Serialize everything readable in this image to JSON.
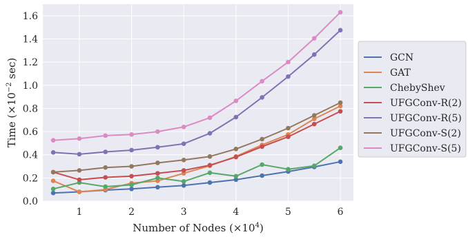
{
  "chart_data": {
    "type": "line",
    "xlabel": "Number of Nodes (×10",
    "xlabel_sup": "4",
    "xlabel_end": ")",
    "ylabel": "Time (×10",
    "ylabel_sup": "−2",
    "ylabel_end": " sec)",
    "x": [
      0.5,
      1,
      1.5,
      2,
      2.5,
      3,
      3.5,
      4,
      4.5,
      5,
      5.5,
      6
    ],
    "xlim": [
      0.3,
      6.25
    ],
    "ylim": [
      0,
      1.7
    ],
    "xticks": [
      1,
      2,
      3,
      4,
      5,
      6
    ],
    "yticks": [
      0.0,
      0.2,
      0.4,
      0.6,
      0.8,
      1.0,
      1.2,
      1.4,
      1.6
    ],
    "xtick_labels": [
      "1",
      "2",
      "3",
      "4",
      "5",
      "6"
    ],
    "ytick_labels": [
      "0.0",
      "0.2",
      "0.4",
      "0.6",
      "0.8",
      "1.0",
      "1.2",
      "1.4",
      "1.6"
    ],
    "grid": true,
    "legend_position": "right",
    "series": [
      {
        "name": "GCN",
        "color": "#4c72b0",
        "values": [
          0.07,
          0.08,
          0.095,
          0.105,
          0.12,
          0.135,
          0.16,
          0.185,
          0.22,
          0.255,
          0.295,
          0.34
        ]
      },
      {
        "name": "GAT",
        "color": "#dd8452",
        "values": [
          0.175,
          0.08,
          0.1,
          0.155,
          0.175,
          0.24,
          0.305,
          0.385,
          0.485,
          0.575,
          0.71,
          0.82
        ]
      },
      {
        "name": "ChebyShev",
        "color": "#55a868",
        "values": [
          0.105,
          0.16,
          0.125,
          0.14,
          0.2,
          0.17,
          0.245,
          0.215,
          0.315,
          0.275,
          0.305,
          0.46
        ]
      },
      {
        "name": "UFGConv-R(2)",
        "color": "#c44e52",
        "values": [
          0.25,
          0.185,
          0.205,
          0.215,
          0.24,
          0.265,
          0.31,
          0.38,
          0.47,
          0.555,
          0.665,
          0.775
        ]
      },
      {
        "name": "UFGConv-R(5)",
        "color": "#8172b3",
        "values": [
          0.42,
          0.405,
          0.425,
          0.44,
          0.465,
          0.495,
          0.585,
          0.725,
          0.895,
          1.075,
          1.265,
          1.475
        ]
      },
      {
        "name": "UFGConv-S(2)",
        "color": "#937860",
        "values": [
          0.25,
          0.265,
          0.29,
          0.3,
          0.33,
          0.355,
          0.385,
          0.45,
          0.535,
          0.63,
          0.74,
          0.85
        ]
      },
      {
        "name": "UFGConv-S(5)",
        "color": "#da8bc3",
        "values": [
          0.525,
          0.54,
          0.565,
          0.575,
          0.6,
          0.64,
          0.72,
          0.865,
          1.035,
          1.2,
          1.405,
          1.63
        ]
      }
    ]
  }
}
